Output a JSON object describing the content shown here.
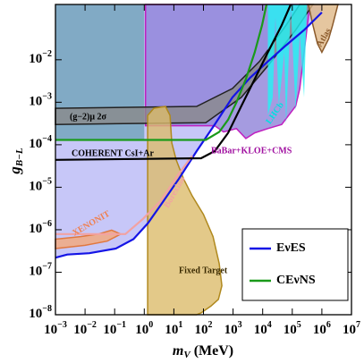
{
  "chart_data": {
    "type": "line",
    "xscale": "log",
    "yscale": "log",
    "xlabel": "mV (MeV)",
    "ylabel": "gB−L",
    "xlim": [
      0.001,
      10000000
    ],
    "ylim": [
      1e-08,
      0.2
    ],
    "xticks": [
      {
        "value": 0.001,
        "label": "10−3"
      },
      {
        "value": 0.01,
        "label": "10−2"
      },
      {
        "value": 0.1,
        "label": "10−1"
      },
      {
        "value": 1,
        "label": "100"
      },
      {
        "value": 10,
        "label": "101"
      },
      {
        "value": 100,
        "label": "102"
      },
      {
        "value": 1000,
        "label": "103"
      },
      {
        "value": 10000,
        "label": "104"
      },
      {
        "value": 100000,
        "label": "105"
      },
      {
        "value": 1000000,
        "label": "106"
      },
      {
        "value": 10000000,
        "label": "107"
      }
    ],
    "yticks": [
      {
        "value": 1e-08,
        "label": "10−8"
      },
      {
        "value": 1e-07,
        "label": "10−7"
      },
      {
        "value": 1e-06,
        "label": "10−6"
      },
      {
        "value": 1e-05,
        "label": "10−5"
      },
      {
        "value": 0.0001,
        "label": "10−4"
      },
      {
        "value": 0.001,
        "label": "10−3"
      },
      {
        "value": 0.01,
        "label": "10−2"
      }
    ],
    "legend": "lower right",
    "annotations": [
      "(g−2)μ 2σ",
      "COHERENT CsI+Ar",
      "BaBar+KLOE+CMS",
      "LHCb",
      "Atlas",
      "XENONIT",
      "Borexino",
      "Fixed Target"
    ],
    "series": [
      {
        "name": "EνES",
        "color": "#1414e6",
        "fill": "#b9b9f6",
        "x": [
          0.001,
          0.0025,
          0.014,
          0.11,
          0.43,
          1.3,
          3.6,
          15,
          59,
          240,
          950,
          3800,
          15000,
          62000,
          250000,
          1000000
        ],
        "values": [
          2.2e-07,
          2.6e-07,
          2.8e-07,
          3.6e-07,
          6e-07,
          1.4e-06,
          3.8e-06,
          1.6e-05,
          7.1e-05,
          0.0003,
          0.0013,
          0.0038,
          0.0091,
          0.022,
          0.05,
          0.13
        ]
      },
      {
        "fill": "#6fa3b8",
        "closed": true,
        "x": [
          0.001,
          1,
          1,
          0.001
        ],
        "values": [
          0.00013,
          0.00013,
          0.2,
          0.2
        ]
      },
      {
        "fill": "#f4a878",
        "color": "#e07840",
        "closed": true,
        "x": [
          0.001,
          0.0071,
          0.028,
          0.079,
          0.16,
          0.056,
          0.01,
          0.001
        ],
        "values": [
          6e-07,
          6.9e-07,
          7.9e-07,
          9.8e-07,
          7.9e-07,
          5.4e-07,
          4.3e-07,
          3.6e-07
        ]
      },
      {
        "fill": "#8f82d8",
        "color": "#c020c0",
        "closed": true,
        "x": [
          1.1,
          240,
          480,
          1300,
          2700,
          5400,
          15000,
          44000,
          130000,
          180000,
          250000,
          350000,
          410000,
          1.1
        ],
        "values": [
          0.00028,
          0.00028,
          0.0002,
          0.00024,
          0.00014,
          0.00019,
          0.00024,
          0.0003,
          0.00081,
          0.0021,
          0.015,
          0.1,
          0.2,
          0.2
        ]
      },
      {
        "fill": "#8a8a8a",
        "color": "#222222",
        "closed": true,
        "x": [
          0.001,
          59,
          950,
          7800,
          62000,
          180000,
          500000,
          130000,
          15000,
          1900,
          120,
          0.001
        ],
        "values": [
          0.00072,
          0.0008,
          0.0021,
          0.0091,
          0.065,
          0.2,
          0.2,
          0.05,
          0.0072,
          0.0013,
          0.00033,
          0.0003
        ]
      },
      {
        "fill": "#dcbb6c",
        "color": "#b0891e",
        "closed": true,
        "x": [
          1.3,
          1.3,
          2.1,
          5.2,
          7.4,
          8.5,
          12,
          21,
          42,
          100,
          210,
          340,
          420,
          320,
          180,
          83,
          59
        ],
        "values": [
          1e-08,
          0.00049,
          0.00072,
          0.0008,
          0.00049,
          0.00011,
          4.4e-05,
          1.6e-05,
          6.2e-06,
          2.3e-06,
          6.9e-07,
          1.6e-07,
          4.8e-08,
          2.3e-08,
          1.6e-08,
          1.1e-08,
          1e-08
        ]
      },
      {
        "fill": "#22f4f4",
        "closed": true,
        "x": [
          15000,
          15000,
          22000,
          27000,
          35000,
          54000,
          62000,
          89000,
          130000,
          180000,
          250000,
          310000
        ],
        "values": [
          0.2,
          0.00049,
          0.0013,
          0.1,
          0.00081,
          0.015,
          0.0003,
          0.17,
          0.00063,
          0.04,
          0.0013,
          0.2
        ]
      },
      {
        "fill": "#deb887",
        "color": "#8b5a2b",
        "closed": true,
        "x": [
          350000,
          500000,
          710000,
          1000000,
          1700000,
          2300000,
          3500000
        ],
        "values": [
          0.2,
          0.065,
          0.024,
          0.015,
          0.031,
          0.065,
          0.2
        ]
      },
      {
        "color": "#f2a2a2",
        "x": [
          0.001,
          0.23,
          0.91,
          3.6,
          15,
          42
        ],
        "values": [
          7.9e-07,
          7.9e-07,
          1.8e-06,
          4.8e-06,
          2.1e-05,
          5.5e-05
        ]
      },
      {
        "color": "#000000",
        "x": [
          0.001,
          83,
          240,
          680,
          1900,
          5400,
          15000,
          44000,
          89000
        ],
        "values": [
          4.4e-05,
          4.8e-05,
          7.1e-05,
          0.00019,
          0.00081,
          0.0035,
          0.015,
          0.065,
          0.2
        ]
      },
      {
        "name": "CEνNS",
        "color": "#1a9a1a",
        "x": [
          0.001,
          120,
          340,
          680,
          1300,
          2700,
          5400,
          9500,
          13500
        ],
        "values": [
          0.00013,
          0.00013,
          0.0002,
          0.00039,
          0.001,
          0.0035,
          0.015,
          0.065,
          0.2
        ]
      }
    ]
  }
}
